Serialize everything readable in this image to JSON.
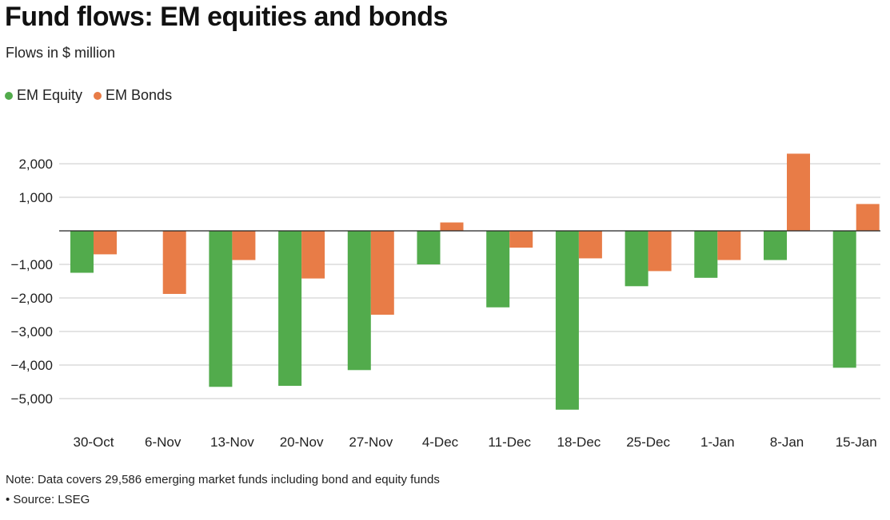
{
  "chart_data": {
    "type": "bar",
    "title": "Fund flows: EM equities and bonds",
    "subtitle": "Flows in $ million",
    "xlabel": "",
    "ylabel": "",
    "categories": [
      "30-Oct",
      "6-Nov",
      "13-Nov",
      "20-Nov",
      "27-Nov",
      "4-Dec",
      "11-Dec",
      "18-Dec",
      "25-Dec",
      "1-Jan",
      "8-Jan",
      "15-Jan"
    ],
    "series": [
      {
        "name": "EM Equity",
        "color": "#52ab4c",
        "values": [
          -1250,
          0,
          -4650,
          -4620,
          -4150,
          -1000,
          -2280,
          -5330,
          -1650,
          -1400,
          -870,
          -4080
        ]
      },
      {
        "name": "EM Bonds",
        "color": "#e87c47",
        "values": [
          -700,
          -1880,
          -870,
          -1420,
          -2500,
          250,
          -500,
          -820,
          -1200,
          -870,
          2300,
          800
        ]
      }
    ],
    "ylim": [
      -6000,
      2500
    ],
    "yticks": [
      2000,
      1000,
      -1000,
      -2000,
      -3000,
      -4000,
      -5000
    ],
    "ytick_labels": [
      "2,000",
      "1,000",
      "−1,000",
      "−2,000",
      "−3,000",
      "−4,000",
      "−5,000"
    ],
    "grid": true,
    "legend": "top-left"
  },
  "footer": {
    "note": "Note: Data covers 29,586 emerging market funds including bond and equity funds",
    "source": "• Source: LSEG"
  }
}
